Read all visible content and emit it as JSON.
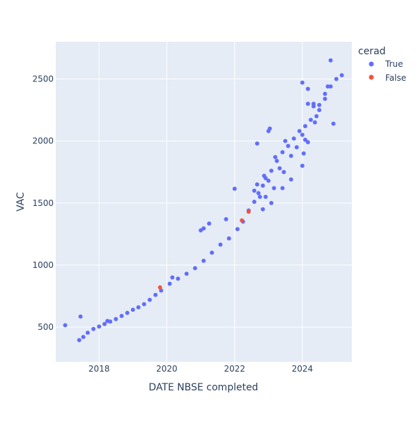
{
  "chart_data": {
    "type": "scatter",
    "xlabel": "DATE NBSE completed",
    "ylabel": "VAC",
    "xlim": [
      "2016-09-21",
      "2025-06-17"
    ],
    "ylim": [
      220,
      2800
    ],
    "x_ticks": [
      "2018",
      "2020",
      "2022",
      "2024"
    ],
    "y_ticks": [
      500,
      1000,
      1500,
      2000,
      2500
    ],
    "grid": true,
    "legend": {
      "title": "cerad",
      "placement": "top-right"
    },
    "series": [
      {
        "name": "True",
        "color": "#636efa",
        "points": [
          [
            "2017-01-01",
            515
          ],
          [
            "2017-06-15",
            585
          ],
          [
            "2017-06-01",
            395
          ],
          [
            "2017-07-15",
            420
          ],
          [
            "2017-09-01",
            455
          ],
          [
            "2017-11-01",
            485
          ],
          [
            "2018-01-01",
            505
          ],
          [
            "2018-03-01",
            525
          ],
          [
            "2018-05-01",
            545
          ],
          [
            "2018-07-01",
            565
          ],
          [
            "2018-09-01",
            590
          ],
          [
            "2018-11-01",
            615
          ],
          [
            "2019-01-01",
            640
          ],
          [
            "2019-03-01",
            660
          ],
          [
            "2019-05-01",
            685
          ],
          [
            "2019-07-01",
            720
          ],
          [
            "2019-09-01",
            760
          ],
          [
            "2019-11-01",
            795
          ],
          [
            "2020-02-01",
            850
          ],
          [
            "2020-05-01",
            890
          ],
          [
            "2020-08-01",
            930
          ],
          [
            "2020-11-01",
            975
          ],
          [
            "2021-02-01",
            1035
          ],
          [
            "2021-05-01",
            1100
          ],
          [
            "2021-08-01",
            1165
          ],
          [
            "2021-11-01",
            1215
          ],
          [
            "2022-02-01",
            1290
          ],
          [
            "2022-04-01",
            1350
          ],
          [
            "2018-04-01",
            550
          ],
          [
            "2020-03-01",
            900
          ],
          [
            "2021-01-01",
            1280
          ],
          [
            "2021-02-01",
            1295
          ],
          [
            "2021-04-01",
            1335
          ],
          [
            "2022-01-01",
            1615
          ],
          [
            "2021-10-01",
            1370
          ],
          [
            "2022-06-01",
            1440
          ],
          [
            "2022-08-01",
            1510
          ],
          [
            "2022-09-15",
            1580
          ],
          [
            "2022-11-01",
            1640
          ],
          [
            "2022-12-01",
            1700
          ],
          [
            "2023-02-01",
            1760
          ],
          [
            "2023-04-01",
            1840
          ],
          [
            "2023-06-01",
            1910
          ],
          [
            "2023-08-01",
            1960
          ],
          [
            "2023-10-01",
            2020
          ],
          [
            "2023-12-01",
            2080
          ],
          [
            "2024-02-01",
            2120
          ],
          [
            "2024-04-01",
            2170
          ],
          [
            "2024-06-01",
            2200
          ],
          [
            "2022-08-01",
            1600
          ],
          [
            "2022-09-01",
            1650
          ],
          [
            "2022-10-01",
            1550
          ],
          [
            "2022-11-15",
            1720
          ],
          [
            "2023-01-01",
            1680
          ],
          [
            "2023-03-01",
            1620
          ],
          [
            "2023-03-15",
            1870
          ],
          [
            "2023-05-01",
            1780
          ],
          [
            "2023-06-15",
            1750
          ],
          [
            "2023-07-01",
            2000
          ],
          [
            "2023-09-01",
            1880
          ],
          [
            "2023-11-01",
            1950
          ],
          [
            "2024-01-01",
            2050
          ],
          [
            "2024-01-15",
            1900
          ],
          [
            "2024-03-01",
            2300
          ],
          [
            "2024-05-01",
            2280
          ],
          [
            "2024-05-15",
            2150
          ],
          [
            "2024-07-01",
            2250
          ],
          [
            "2022-12-01",
            1550
          ],
          [
            "2023-02-01",
            1500
          ],
          [
            "2022-11-01",
            1450
          ],
          [
            "2023-06-01",
            1620
          ],
          [
            "2023-09-01",
            1690
          ],
          [
            "2024-01-01",
            1800
          ],
          [
            "2024-02-01",
            2010
          ],
          [
            "2024-03-01",
            1990
          ],
          [
            "2022-09-01",
            1980
          ],
          [
            "2023-01-01",
            2080
          ],
          [
            "2023-01-15",
            2100
          ],
          [
            "2024-01-01",
            2470
          ],
          [
            "2024-03-01",
            2420
          ],
          [
            "2024-05-01",
            2300
          ],
          [
            "2024-07-01",
            2290
          ],
          [
            "2024-09-01",
            2340
          ],
          [
            "2024-10-01",
            2440
          ],
          [
            "2024-11-01",
            2650
          ],
          [
            "2024-12-01",
            2140
          ],
          [
            "2024-09-01",
            2380
          ],
          [
            "2024-11-01",
            2440
          ],
          [
            "2025-01-01",
            2500
          ],
          [
            "2025-03-01",
            2530
          ]
        ]
      },
      {
        "name": "False",
        "color": "#ef553b",
        "points": [
          [
            "2019-10-20",
            820
          ],
          [
            "2022-03-20",
            1360
          ],
          [
            "2022-06-01",
            1430
          ]
        ]
      }
    ]
  }
}
